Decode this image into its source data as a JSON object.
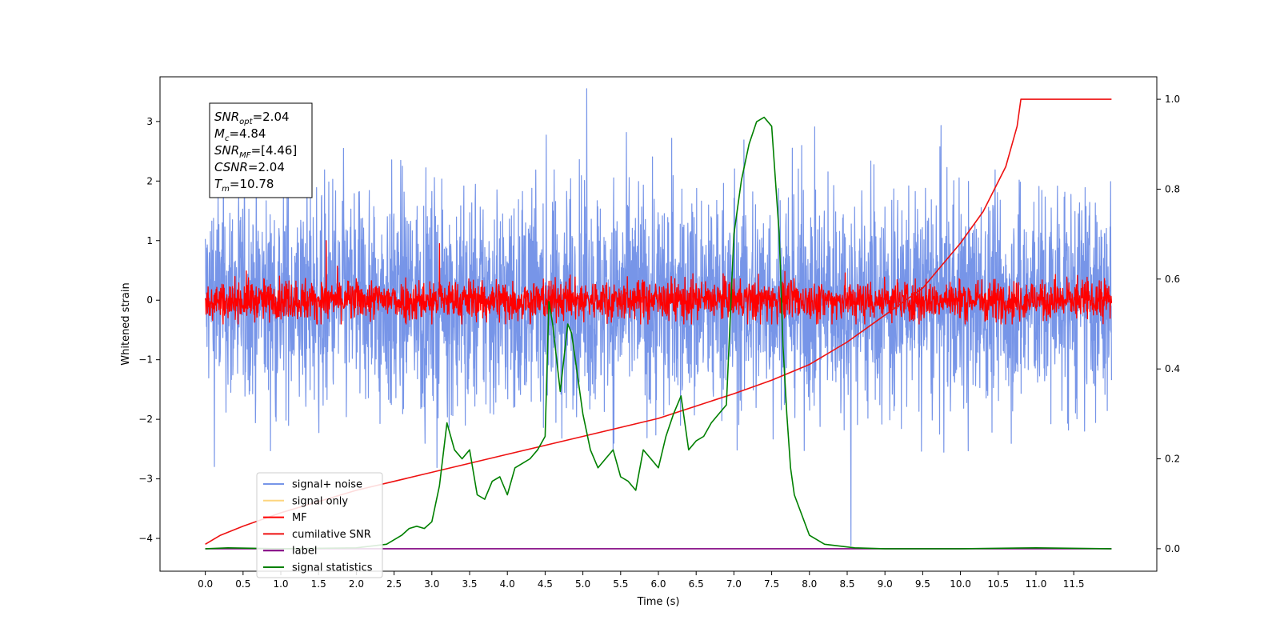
{
  "chart_data": {
    "type": "line",
    "xlabel": "Time (s)",
    "ylabel": "Whitened strain",
    "xlim": [
      -0.6,
      12.6
    ],
    "ylim": [
      -4.55,
      3.75
    ],
    "y2lim": [
      -0.05,
      1.05
    ],
    "xticks": [
      0.0,
      0.5,
      1.0,
      1.5,
      2.0,
      2.5,
      3.0,
      3.5,
      4.0,
      4.5,
      5.0,
      5.5,
      6.0,
      6.5,
      7.0,
      7.5,
      8.0,
      8.5,
      9.0,
      9.5,
      10.0,
      10.5,
      11.0,
      11.5
    ],
    "xtick_labels": [
      "0.0",
      "0.5",
      "1.0",
      "1.5",
      "2.0",
      "2.5",
      "3.0",
      "3.5",
      "4.0",
      "4.5",
      "5.0",
      "5.5",
      "6.0",
      "6.5",
      "7.0",
      "7.5",
      "8.0",
      "8.5",
      "9.0",
      "9.5",
      "10.0",
      "10.5",
      "11.0",
      "11.5"
    ],
    "yticks": [
      -4,
      -3,
      -2,
      -1,
      0,
      1,
      2,
      3
    ],
    "ytick_labels": [
      "−4",
      "−3",
      "−2",
      "−1",
      "0",
      "1",
      "2",
      "3"
    ],
    "y2ticks": [
      0.0,
      0.2,
      0.4,
      0.6,
      0.8,
      1.0
    ],
    "y2tick_labels": [
      "0.0",
      "0.2",
      "0.4",
      "0.6",
      "0.8",
      "1.0"
    ],
    "legend_placement": "lower-left",
    "legend": [
      {
        "label": "signal+ noise",
        "color": "#7795e8"
      },
      {
        "label": "signal only",
        "color": "#fdd57f"
      },
      {
        "label": "MF",
        "color": "#ff0000"
      },
      {
        "label": "cumilative SNR",
        "color": "#ee1111"
      },
      {
        "label": "label",
        "color": "#800080"
      },
      {
        "label": "signal statistics",
        "color": "#008000"
      }
    ],
    "annotation": {
      "lines": [
        {
          "name": "SNR",
          "sub": "opt",
          "value": "=2.04"
        },
        {
          "name": "M",
          "sub": "c",
          "value": "=4.84"
        },
        {
          "name": "SNR",
          "sub": "MF",
          "value": "=[4.46]"
        },
        {
          "name": "CSNR",
          "sub": "",
          "value": "=2.04"
        },
        {
          "name": "T",
          "sub": "m",
          "value": "=10.78"
        }
      ]
    },
    "series": [
      {
        "name": "signal+ noise",
        "axis": "left",
        "color": "#7795e8",
        "x_range": [
          0.0,
          12.0
        ],
        "amplitude": 1.2,
        "envelope_y": [
          -2.6,
          2.4
        ],
        "max_y": 3.55,
        "min_y": -4.12
      },
      {
        "name": "MF",
        "axis": "left",
        "color": "#ff0000",
        "x_range": [
          0.0,
          12.0
        ],
        "amplitude": 0.22,
        "max_y": 1.0,
        "min_y": -0.4
      },
      {
        "name": "cumilative SNR",
        "axis": "right",
        "color": "#ee1111",
        "x": [
          0.0,
          0.2,
          0.5,
          1.0,
          2.0,
          3.0,
          4.0,
          5.0,
          6.0,
          7.0,
          7.5,
          8.0,
          8.5,
          9.0,
          9.5,
          10.0,
          10.3,
          10.6,
          10.75,
          10.8,
          11.0,
          11.5,
          12.0
        ],
        "y": [
          0.01,
          0.03,
          0.05,
          0.08,
          0.13,
          0.17,
          0.21,
          0.25,
          0.29,
          0.345,
          0.375,
          0.41,
          0.46,
          0.52,
          0.58,
          0.68,
          0.75,
          0.85,
          0.94,
          1.0,
          1.0,
          1.0,
          1.0
        ]
      },
      {
        "name": "label",
        "axis": "right",
        "color": "#800080",
        "x": [
          0.0,
          12.0
        ],
        "y": [
          0.0,
          0.0
        ]
      },
      {
        "name": "signal statistics",
        "axis": "right",
        "color": "#008000",
        "x": [
          0.0,
          0.3,
          1.0,
          2.0,
          2.4,
          2.6,
          2.7,
          2.8,
          2.9,
          3.0,
          3.1,
          3.2,
          3.3,
          3.4,
          3.5,
          3.6,
          3.7,
          3.8,
          3.9,
          4.0,
          4.1,
          4.2,
          4.3,
          4.4,
          4.5,
          4.55,
          4.6,
          4.7,
          4.8,
          4.85,
          4.9,
          5.0,
          5.1,
          5.2,
          5.3,
          5.4,
          5.5,
          5.6,
          5.7,
          5.8,
          5.9,
          6.0,
          6.1,
          6.2,
          6.3,
          6.4,
          6.5,
          6.6,
          6.7,
          6.8,
          6.9,
          7.0,
          7.1,
          7.2,
          7.3,
          7.4,
          7.5,
          7.6,
          7.65,
          7.7,
          7.75,
          7.8,
          8.0,
          8.2,
          8.6,
          9.0,
          10.0,
          11.0,
          12.0
        ],
        "y": [
          0.0,
          0.002,
          0.0,
          0.002,
          0.01,
          0.03,
          0.045,
          0.05,
          0.045,
          0.06,
          0.14,
          0.28,
          0.22,
          0.2,
          0.22,
          0.12,
          0.11,
          0.15,
          0.16,
          0.12,
          0.18,
          0.19,
          0.2,
          0.22,
          0.25,
          0.55,
          0.5,
          0.35,
          0.5,
          0.48,
          0.42,
          0.3,
          0.22,
          0.18,
          0.2,
          0.22,
          0.16,
          0.15,
          0.13,
          0.22,
          0.2,
          0.18,
          0.25,
          0.3,
          0.34,
          0.22,
          0.24,
          0.25,
          0.28,
          0.3,
          0.32,
          0.7,
          0.82,
          0.9,
          0.95,
          0.96,
          0.94,
          0.7,
          0.45,
          0.3,
          0.18,
          0.12,
          0.03,
          0.01,
          0.002,
          0.0,
          0.0,
          0.002,
          0.0
        ]
      }
    ]
  }
}
